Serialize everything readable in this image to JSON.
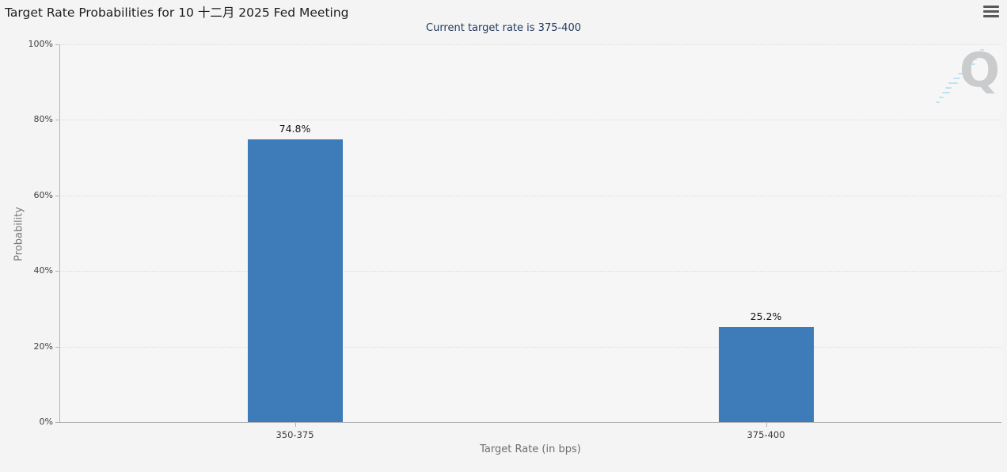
{
  "header": {
    "title": "Target Rate Probabilities for 10 十二月 2025 Fed Meeting"
  },
  "menu": {
    "icon": "hamburger-menu-icon"
  },
  "subtitle": "Current target rate is 375-400",
  "watermark": {
    "letter": "Q"
  },
  "colors": {
    "bar": "#3d7cb8",
    "subtitle_text": "#24395c",
    "axis_line": "#b3b4b6",
    "gridline": "#d9d9da",
    "background": "#f4f4f5",
    "watermark_q": "#c9cbcd",
    "watermark_dashes": "#b4dff0"
  },
  "chart_data": {
    "type": "bar",
    "title": "Target Rate Probabilities for 10 十二月 2025 Fed Meeting",
    "subtitle": "Current target rate is 375-400",
    "categories": [
      "350-375",
      "375-400"
    ],
    "values": [
      74.8,
      25.2
    ],
    "value_labels": [
      "74.8%",
      "25.2%"
    ],
    "xlabel": "Target Rate (in bps)",
    "ylabel": "Probability",
    "ylim": [
      0,
      100
    ],
    "yticks": [
      0,
      20,
      40,
      60,
      80,
      100
    ],
    "ytick_labels": [
      "0%",
      "20%",
      "40%",
      "60%",
      "80%",
      "100%"
    ],
    "grid": "horizontal dotted",
    "legend": "none",
    "bar_color": "#3d7cb8"
  }
}
